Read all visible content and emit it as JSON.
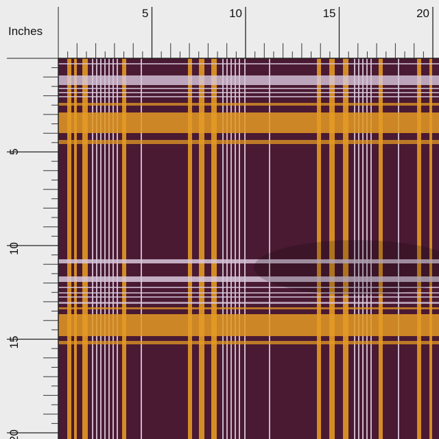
{
  "ruler_unit": "Inches",
  "top_ruler": {
    "labels": [
      5,
      10,
      15,
      20
    ]
  },
  "left_ruler": {
    "labels": [
      5,
      10,
      15,
      20
    ]
  }
}
